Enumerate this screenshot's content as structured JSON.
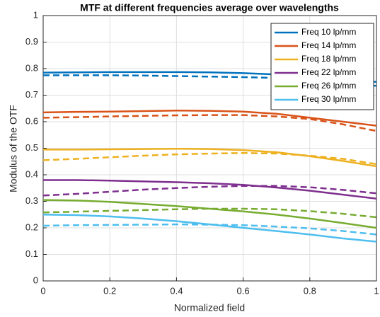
{
  "chart_data": {
    "type": "line",
    "title": "MTF at different frequencies average over wavelengths",
    "x_label": "Normalized field",
    "y_label": "Modulus of the OTF",
    "x": [
      0,
      0.1,
      0.2,
      0.3,
      0.4,
      0.5,
      0.6,
      0.7,
      0.8,
      0.9,
      1
    ],
    "xlim": [
      0,
      1
    ],
    "xticks": [
      0,
      0.2,
      0.4,
      0.6,
      0.8,
      1
    ],
    "ylim": [
      0,
      1
    ],
    "yticks": [
      0,
      0.1,
      0.2,
      0.3,
      0.4,
      0.5,
      0.6,
      0.7,
      0.8,
      0.9,
      1
    ],
    "grid": true,
    "legend": "top-right",
    "series": [
      {
        "name": "Freq 10 lp/mm",
        "color": "#0072BD",
        "values": [
          0.785,
          0.786,
          0.787,
          0.787,
          0.787,
          0.786,
          0.783,
          0.778,
          0.77,
          0.76,
          0.75
        ]
      },
      {
        "name": "Freq 14 lp/mm",
        "color": "#D95319",
        "values": [
          0.635,
          0.637,
          0.638,
          0.64,
          0.642,
          0.641,
          0.638,
          0.63,
          0.615,
          0.6,
          0.585
        ]
      },
      {
        "name": "Freq 18 lp/mm",
        "color": "#EDB120",
        "values": [
          0.495,
          0.495,
          0.496,
          0.497,
          0.498,
          0.497,
          0.493,
          0.485,
          0.47,
          0.452,
          0.432
        ]
      },
      {
        "name": "Freq 22 lp/mm",
        "color": "#7E2F8E",
        "values": [
          0.38,
          0.38,
          0.378,
          0.375,
          0.372,
          0.368,
          0.362,
          0.352,
          0.34,
          0.325,
          0.31
        ]
      },
      {
        "name": "Freq 26 lp/mm",
        "color": "#77AC30",
        "values": [
          0.305,
          0.303,
          0.298,
          0.29,
          0.282,
          0.272,
          0.262,
          0.25,
          0.235,
          0.218,
          0.2
        ]
      },
      {
        "name": "Freq 30 lp/mm",
        "color": "#4DBEEE",
        "values": [
          0.25,
          0.248,
          0.243,
          0.235,
          0.225,
          0.213,
          0.2,
          0.188,
          0.175,
          0.16,
          0.148
        ]
      },
      {
        "color": "#0072BD",
        "dashed": true,
        "values": [
          0.775,
          0.775,
          0.775,
          0.774,
          0.772,
          0.77,
          0.768,
          0.765,
          0.76,
          0.75,
          0.735
        ]
      },
      {
        "color": "#D95319",
        "dashed": true,
        "values": [
          0.615,
          0.617,
          0.62,
          0.622,
          0.624,
          0.625,
          0.625,
          0.62,
          0.61,
          0.59,
          0.565
        ]
      },
      {
        "color": "#EDB120",
        "dashed": true,
        "values": [
          0.455,
          0.46,
          0.466,
          0.472,
          0.477,
          0.48,
          0.482,
          0.48,
          0.472,
          0.46,
          0.44
        ]
      },
      {
        "color": "#7E2F8E",
        "dashed": true,
        "values": [
          0.322,
          0.328,
          0.336,
          0.344,
          0.35,
          0.355,
          0.358,
          0.358,
          0.353,
          0.343,
          0.33
        ]
      },
      {
        "color": "#77AC30",
        "dashed": true,
        "values": [
          0.258,
          0.261,
          0.264,
          0.267,
          0.27,
          0.272,
          0.272,
          0.27,
          0.263,
          0.253,
          0.24
        ]
      },
      {
        "color": "#4DBEEE",
        "dashed": true,
        "values": [
          0.208,
          0.21,
          0.211,
          0.212,
          0.213,
          0.212,
          0.21,
          0.205,
          0.198,
          0.188,
          0.175
        ]
      }
    ]
  }
}
